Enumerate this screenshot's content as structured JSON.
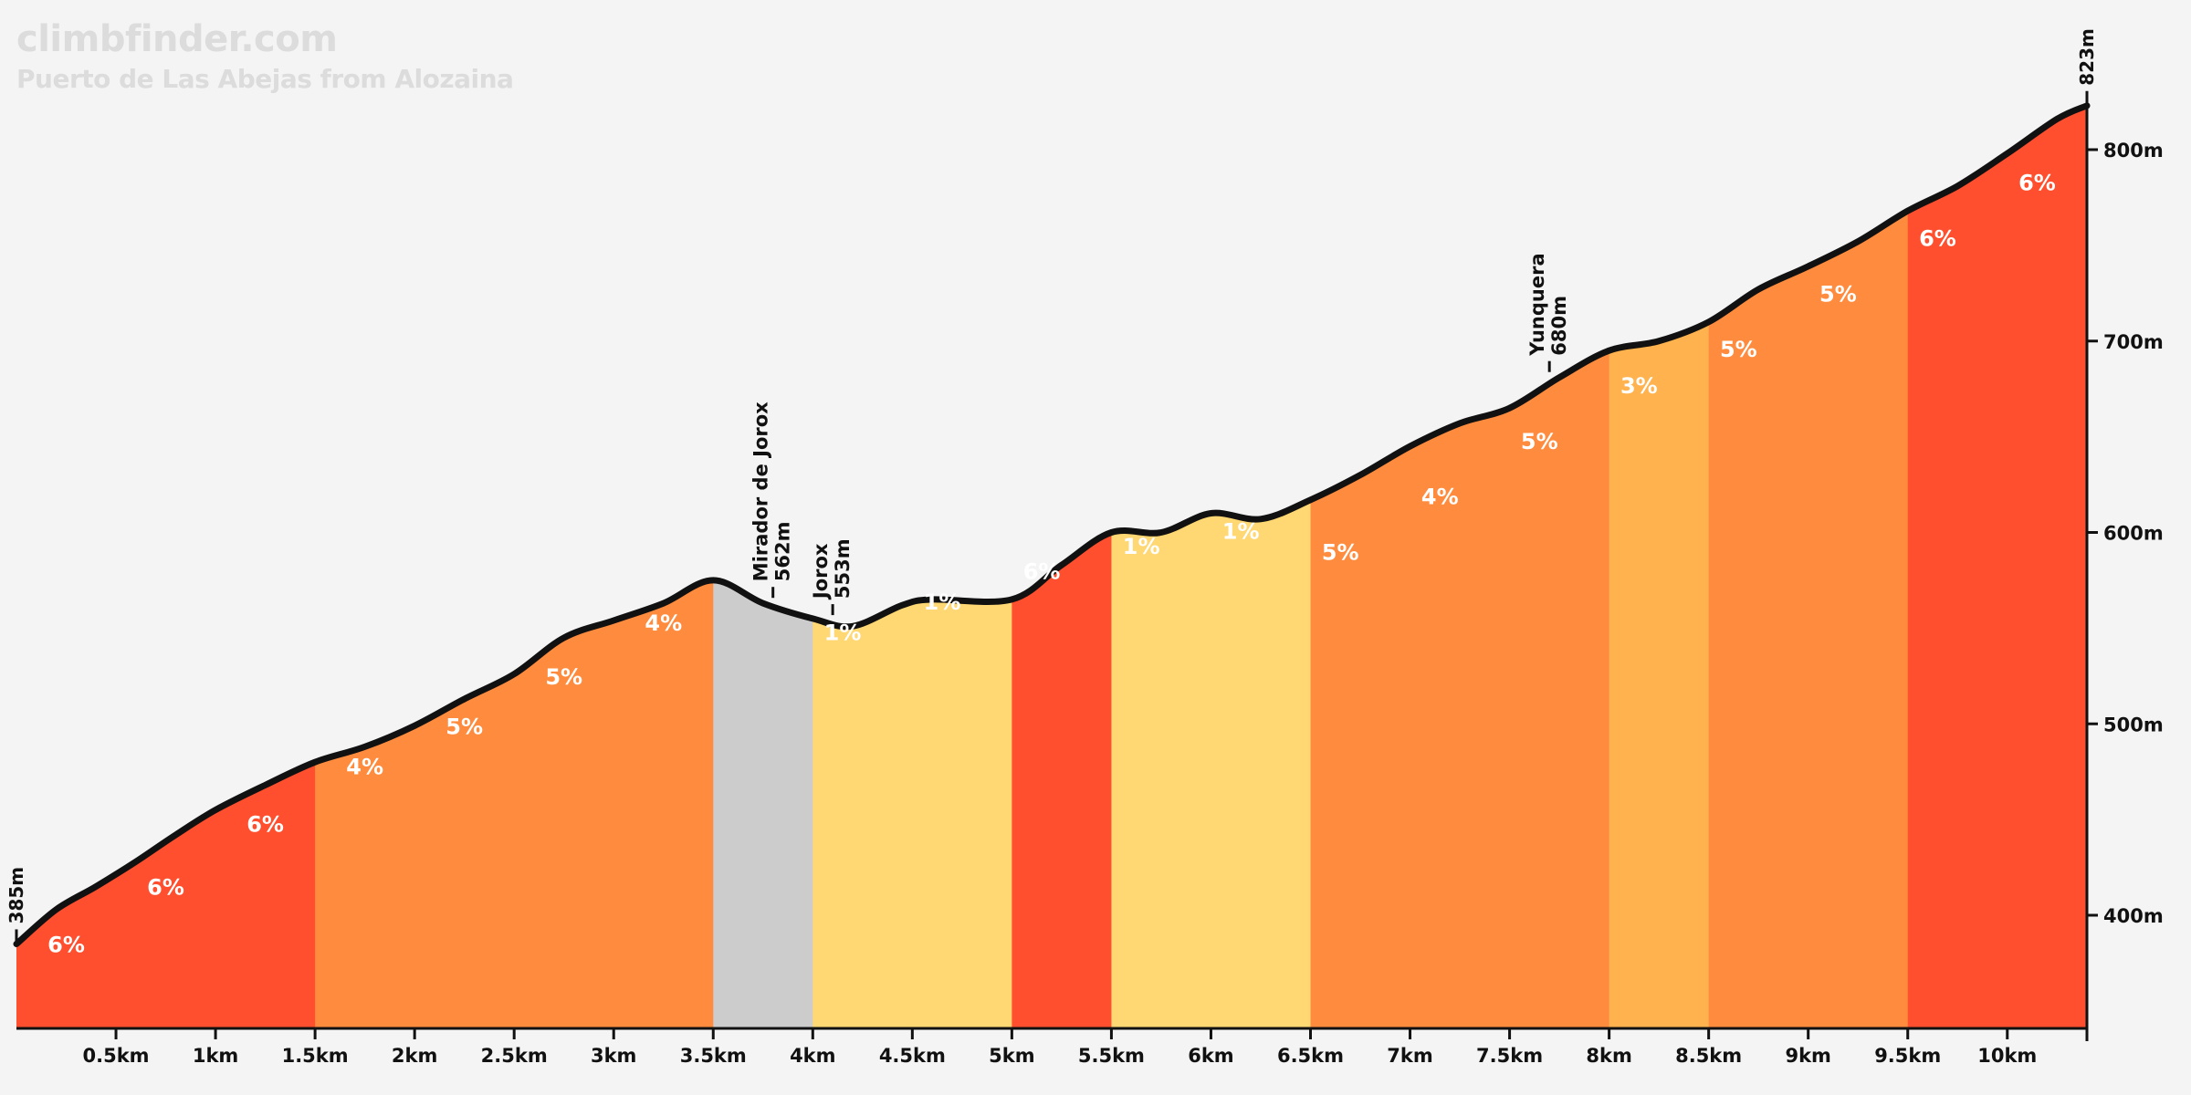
{
  "header": {
    "brand": "climbfinder.com",
    "title": "Puerto de Las Abejas from Alozaina"
  },
  "colors": {
    "background": "#f4f4f4",
    "grade_6_plus": "#ff4f2e",
    "grade_4_5": "#ff8c3e",
    "grade_3": "#ffb24d",
    "grade_0_2": "#ffd773",
    "descent": "#cccccc",
    "profile_line": "#111111"
  },
  "chart_data": {
    "type": "area",
    "xlabel": "",
    "ylabel": "",
    "xlim": [
      0,
      10.4
    ],
    "ylim": [
      340,
      830
    ],
    "x_unit": "km",
    "y_unit": "m",
    "start_label": "385m",
    "end_label": "823m",
    "x_ticks": [
      "0.5km",
      "1km",
      "1.5km",
      "2km",
      "2.5km",
      "3km",
      "3.5km",
      "4km",
      "4.5km",
      "5km",
      "5.5km",
      "6km",
      "6.5km",
      "7km",
      "7.5km",
      "8km",
      "8.5km",
      "9km",
      "9.5km",
      "10km"
    ],
    "y_ticks": [
      "400m",
      "500m",
      "600m",
      "700m",
      "800m"
    ],
    "elevation_profile": [
      {
        "km": 0,
        "m": 385
      },
      {
        "km": 0.2,
        "m": 403
      },
      {
        "km": 0.4,
        "m": 415
      },
      {
        "km": 0.6,
        "m": 428
      },
      {
        "km": 0.8,
        "m": 442
      },
      {
        "km": 1.0,
        "m": 455
      },
      {
        "km": 1.25,
        "m": 468
      },
      {
        "km": 1.5,
        "m": 480
      },
      {
        "km": 1.75,
        "m": 488
      },
      {
        "km": 2.0,
        "m": 499
      },
      {
        "km": 2.25,
        "m": 513
      },
      {
        "km": 2.5,
        "m": 526
      },
      {
        "km": 2.75,
        "m": 545
      },
      {
        "km": 3.0,
        "m": 554
      },
      {
        "km": 3.25,
        "m": 563
      },
      {
        "km": 3.5,
        "m": 575
      },
      {
        "km": 3.75,
        "m": 563
      },
      {
        "km": 4.0,
        "m": 555
      },
      {
        "km": 4.2,
        "m": 551
      },
      {
        "km": 4.45,
        "m": 562
      },
      {
        "km": 4.6,
        "m": 565
      },
      {
        "km": 5.0,
        "m": 565
      },
      {
        "km": 5.25,
        "m": 583
      },
      {
        "km": 5.5,
        "m": 600
      },
      {
        "km": 5.75,
        "m": 600
      },
      {
        "km": 6.0,
        "m": 610
      },
      {
        "km": 6.25,
        "m": 607
      },
      {
        "km": 6.5,
        "m": 617
      },
      {
        "km": 6.75,
        "m": 630
      },
      {
        "km": 7.0,
        "m": 645
      },
      {
        "km": 7.25,
        "m": 657
      },
      {
        "km": 7.5,
        "m": 665
      },
      {
        "km": 7.75,
        "m": 681
      },
      {
        "km": 8.0,
        "m": 695
      },
      {
        "km": 8.25,
        "m": 700
      },
      {
        "km": 8.5,
        "m": 710
      },
      {
        "km": 8.75,
        "m": 727
      },
      {
        "km": 9.0,
        "m": 739
      },
      {
        "km": 9.25,
        "m": 752
      },
      {
        "km": 9.5,
        "m": 768
      },
      {
        "km": 9.75,
        "m": 781
      },
      {
        "km": 10.0,
        "m": 798
      },
      {
        "km": 10.25,
        "m": 816
      },
      {
        "km": 10.4,
        "m": 823
      }
    ],
    "segments": [
      {
        "start": 0.0,
        "end": 1.5,
        "color": "#ff4f2e"
      },
      {
        "start": 1.5,
        "end": 3.5,
        "color": "#ff8c3e"
      },
      {
        "start": 3.5,
        "end": 4.0,
        "color": "#cccccc"
      },
      {
        "start": 4.0,
        "end": 5.0,
        "color": "#ffd773"
      },
      {
        "start": 5.0,
        "end": 5.5,
        "color": "#ff4f2e"
      },
      {
        "start": 5.5,
        "end": 6.5,
        "color": "#ffd773"
      },
      {
        "start": 6.5,
        "end": 8.0,
        "color": "#ff8c3e"
      },
      {
        "start": 8.0,
        "end": 8.5,
        "color": "#ffb24d"
      },
      {
        "start": 8.5,
        "end": 9.5,
        "color": "#ff8c3e"
      },
      {
        "start": 9.5,
        "end": 10.4,
        "color": "#ff4f2e"
      }
    ],
    "grade_labels": [
      {
        "km": 0.25,
        "m": 385,
        "text": "6%"
      },
      {
        "km": 0.75,
        "m": 415,
        "text": "6%"
      },
      {
        "km": 1.25,
        "m": 448,
        "text": "6%"
      },
      {
        "km": 1.75,
        "m": 478,
        "text": "4%"
      },
      {
        "km": 2.25,
        "m": 499,
        "text": "5%"
      },
      {
        "km": 2.75,
        "m": 525,
        "text": "5%"
      },
      {
        "km": 3.25,
        "m": 553,
        "text": "4%"
      },
      {
        "km": 4.15,
        "m": 548,
        "text": "1%"
      },
      {
        "km": 4.65,
        "m": 564,
        "text": "1%"
      },
      {
        "km": 5.15,
        "m": 580,
        "text": "6%"
      },
      {
        "km": 5.65,
        "m": 593,
        "text": "1%"
      },
      {
        "km": 6.15,
        "m": 601,
        "text": "1%"
      },
      {
        "km": 6.65,
        "m": 590,
        "text": "5%"
      },
      {
        "km": 7.15,
        "m": 619,
        "text": "4%"
      },
      {
        "km": 7.65,
        "m": 648,
        "text": "5%"
      },
      {
        "km": 8.15,
        "m": 677,
        "text": "3%"
      },
      {
        "km": 8.65,
        "m": 696,
        "text": "5%"
      },
      {
        "km": 9.15,
        "m": 725,
        "text": "5%"
      },
      {
        "km": 9.65,
        "m": 754,
        "text": "6%"
      },
      {
        "km": 10.15,
        "m": 783,
        "text": "6%"
      }
    ],
    "points_of_interest": [
      {
        "km": 3.8,
        "m": 562,
        "name": "Mirador de Jorox",
        "elevation": "562m"
      },
      {
        "km": 4.1,
        "m": 553,
        "name": "Jorox",
        "elevation": "553m"
      },
      {
        "km": 7.7,
        "m": 680,
        "name": "Yunquera",
        "elevation": "680m"
      }
    ]
  }
}
